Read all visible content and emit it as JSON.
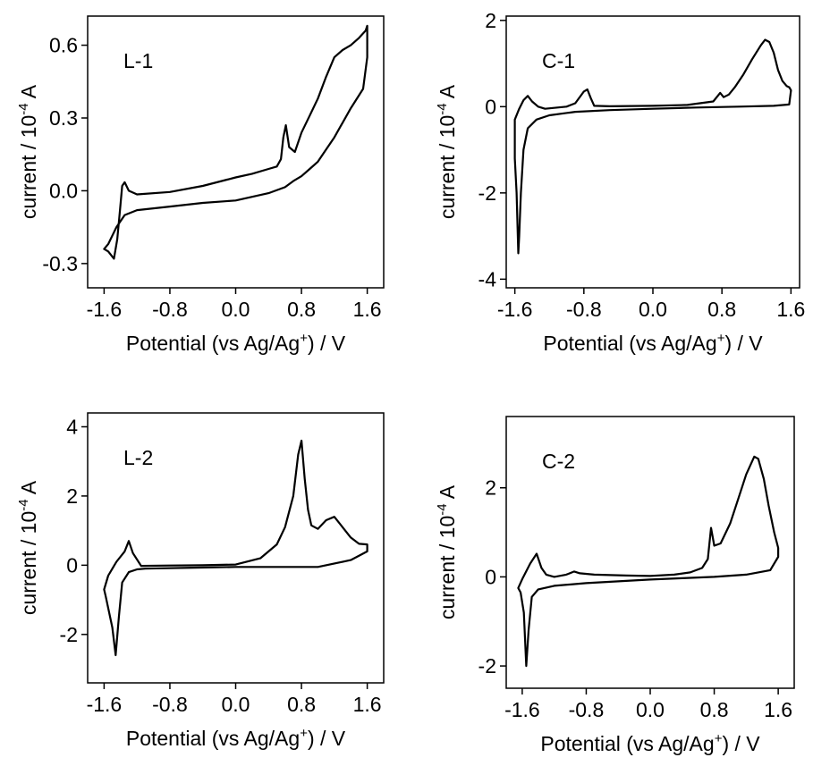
{
  "chart_data": [
    {
      "type": "line",
      "panel_label": "L-1",
      "xlabel": "Potential (vs Ag/Ag",
      "xlabel_sup": "+",
      "xlabel_end": ") / V",
      "ylabel": "current / 10",
      "ylabel_sup": "-4",
      "ylabel_end": " A",
      "xlim": [
        -1.8,
        1.8
      ],
      "ylim": [
        -0.4,
        0.72
      ],
      "xticks": [
        -1.6,
        -0.8,
        0.0,
        0.8,
        1.6
      ],
      "xtick_labels": [
        "-1.6",
        "-0.8",
        "0.0",
        "0.8",
        "1.6"
      ],
      "yticks": [
        -0.3,
        0.0,
        0.3,
        0.6
      ],
      "ytick_labels": [
        "-0.3",
        "0.0",
        "0.3",
        "0.6"
      ],
      "series": [
        {
          "x": [
            0.0,
            0.2,
            0.4,
            0.5,
            0.55,
            0.58,
            0.61,
            0.65,
            0.72,
            0.8,
            0.9,
            1.0,
            1.1,
            1.2,
            1.3,
            1.4,
            1.5,
            1.58,
            1.6,
            1.6,
            1.55,
            1.4,
            1.3,
            1.2,
            1.1,
            1.0,
            0.9,
            0.8,
            0.7,
            0.6,
            0.4,
            0.2,
            0.0,
            -0.4,
            -0.8,
            -1.2,
            -1.35,
            -1.45,
            -1.55,
            -1.6,
            -1.55,
            -1.48,
            -1.44,
            -1.41,
            -1.38,
            -1.35,
            -1.3,
            -1.2,
            -0.8,
            -0.4,
            0.0
          ],
          "y": [
            0.055,
            0.07,
            0.09,
            0.1,
            0.13,
            0.22,
            0.27,
            0.18,
            0.16,
            0.24,
            0.31,
            0.38,
            0.47,
            0.55,
            0.58,
            0.6,
            0.63,
            0.66,
            0.68,
            0.55,
            0.42,
            0.34,
            0.28,
            0.22,
            0.17,
            0.12,
            0.09,
            0.06,
            0.04,
            0.015,
            -0.01,
            -0.025,
            -0.04,
            -0.05,
            -0.065,
            -0.08,
            -0.1,
            -0.15,
            -0.22,
            -0.24,
            -0.25,
            -0.28,
            -0.2,
            -0.09,
            0.02,
            0.035,
            0.0,
            -0.015,
            -0.005,
            0.02,
            0.055
          ]
        }
      ]
    },
    {
      "type": "line",
      "panel_label": "C-1",
      "xlabel": "Potential (vs Ag/Ag",
      "xlabel_sup": "+",
      "xlabel_end": ") / V",
      "ylabel": "current / 10",
      "ylabel_sup": "-4",
      "ylabel_end": " A",
      "xlim": [
        -1.7,
        1.7
      ],
      "ylim": [
        -4.2,
        2.1
      ],
      "xticks": [
        -1.6,
        -0.8,
        0.0,
        0.8,
        1.6
      ],
      "xtick_labels": [
        "-1.6",
        "-0.8",
        "0.0",
        "0.8",
        "1.6"
      ],
      "yticks": [
        -4,
        -2,
        0,
        2
      ],
      "ytick_labels": [
        "-4",
        "-2",
        "0",
        "2"
      ],
      "series": [
        {
          "x": [
            0.0,
            0.4,
            0.7,
            0.78,
            0.82,
            0.88,
            0.95,
            1.05,
            1.15,
            1.25,
            1.3,
            1.35,
            1.4,
            1.45,
            1.5,
            1.55,
            1.58,
            1.6,
            1.58,
            1.4,
            1.0,
            0.5,
            0.0,
            -0.5,
            -0.9,
            -1.2,
            -1.35,
            -1.45,
            -1.5,
            -1.53,
            -1.55,
            -1.56,
            -1.58,
            -1.6,
            -1.6,
            -1.55,
            -1.5,
            -1.45,
            -1.4,
            -1.33,
            -1.25,
            -1.0,
            -0.9,
            -0.8,
            -0.76,
            -0.72,
            -0.68,
            -0.5,
            0.0
          ],
          "y": [
            0.02,
            0.04,
            0.12,
            0.32,
            0.22,
            0.28,
            0.45,
            0.75,
            1.1,
            1.42,
            1.55,
            1.5,
            1.25,
            0.85,
            0.6,
            0.48,
            0.45,
            0.38,
            0.05,
            0.02,
            0.0,
            -0.02,
            -0.05,
            -0.08,
            -0.12,
            -0.2,
            -0.3,
            -0.5,
            -1.0,
            -2.0,
            -3.0,
            -3.4,
            -2.0,
            -1.2,
            -0.3,
            -0.05,
            0.15,
            0.25,
            0.12,
            0.0,
            -0.05,
            0.0,
            0.08,
            0.35,
            0.4,
            0.2,
            0.02,
            0.01,
            0.02
          ]
        }
      ]
    },
    {
      "type": "line",
      "panel_label": "L-2",
      "xlabel": "Potential (vs Ag/Ag",
      "xlabel_sup": "+",
      "xlabel_end": ") / V",
      "ylabel": "current / 10",
      "ylabel_sup": "-4",
      "ylabel_end": " A",
      "xlim": [
        -1.8,
        1.8
      ],
      "ylim": [
        -3.4,
        4.4
      ],
      "xticks": [
        -1.6,
        -0.8,
        0.0,
        0.8,
        1.6
      ],
      "xtick_labels": [
        "-1.6",
        "-0.8",
        "0.0",
        "0.8",
        "1.6"
      ],
      "yticks": [
        -2,
        0,
        2,
        4
      ],
      "ytick_labels": [
        "-2",
        "0",
        "2",
        "4"
      ],
      "series": [
        {
          "x": [
            0.0,
            0.3,
            0.5,
            0.6,
            0.7,
            0.76,
            0.8,
            0.84,
            0.88,
            0.92,
            1.0,
            1.1,
            1.2,
            1.3,
            1.4,
            1.5,
            1.6,
            1.6,
            1.4,
            1.0,
            0.5,
            0.0,
            -0.5,
            -0.9,
            -1.1,
            -1.2,
            -1.3,
            -1.38,
            -1.42,
            -1.46,
            -1.5,
            -1.58,
            -1.6,
            -1.55,
            -1.45,
            -1.35,
            -1.3,
            -1.25,
            -1.15,
            -0.8,
            -0.4,
            0.0
          ],
          "y": [
            0.02,
            0.2,
            0.6,
            1.1,
            2.0,
            3.2,
            3.6,
            2.5,
            1.6,
            1.15,
            1.05,
            1.3,
            1.4,
            1.1,
            0.8,
            0.62,
            0.6,
            0.4,
            0.15,
            -0.05,
            -0.05,
            -0.05,
            -0.07,
            -0.09,
            -0.1,
            -0.12,
            -0.2,
            -0.5,
            -1.5,
            -2.6,
            -1.8,
            -0.9,
            -0.7,
            -0.3,
            0.1,
            0.4,
            0.7,
            0.35,
            -0.02,
            -0.01,
            0.0,
            0.02
          ]
        }
      ]
    },
    {
      "type": "line",
      "panel_label": "C-2",
      "xlabel": "Potential (vs Ag/Ag",
      "xlabel_sup": "+",
      "xlabel_end": ") / V",
      "ylabel": "current / 10",
      "ylabel_sup": "-4",
      "ylabel_end": " A",
      "xlim": [
        -1.8,
        1.8
      ],
      "ylim": [
        -2.5,
        3.6
      ],
      "xticks": [
        -1.6,
        -0.8,
        0.0,
        0.8,
        1.6
      ],
      "xtick_labels": [
        "-1.6",
        "-0.8",
        "0.0",
        "0.8",
        "1.6"
      ],
      "yticks": [
        -2,
        0,
        2
      ],
      "ytick_labels": [
        "-2",
        "0",
        "2"
      ],
      "series": [
        {
          "x": [
            0.0,
            0.3,
            0.5,
            0.65,
            0.72,
            0.76,
            0.8,
            0.88,
            1.0,
            1.1,
            1.2,
            1.3,
            1.35,
            1.42,
            1.48,
            1.55,
            1.6,
            1.6,
            1.5,
            1.2,
            0.8,
            0.4,
            0.0,
            -0.4,
            -0.8,
            -1.2,
            -1.4,
            -1.48,
            -1.52,
            -1.55,
            -1.58,
            -1.62,
            -1.65,
            -1.6,
            -1.5,
            -1.42,
            -1.36,
            -1.3,
            -1.2,
            -1.05,
            -0.95,
            -0.88,
            -0.7,
            -0.5,
            -0.3,
            0.0
          ],
          "y": [
            0.02,
            0.05,
            0.1,
            0.2,
            0.4,
            1.1,
            0.7,
            0.75,
            1.2,
            1.75,
            2.3,
            2.7,
            2.65,
            2.2,
            1.6,
            1.0,
            0.65,
            0.45,
            0.15,
            0.05,
            0.0,
            -0.03,
            -0.06,
            -0.1,
            -0.14,
            -0.2,
            -0.28,
            -0.45,
            -1.2,
            -2.0,
            -0.8,
            -0.35,
            -0.25,
            -0.05,
            0.3,
            0.52,
            0.2,
            0.05,
            0.0,
            0.05,
            0.12,
            0.08,
            0.05,
            0.04,
            0.03,
            0.02
          ]
        }
      ]
    }
  ]
}
